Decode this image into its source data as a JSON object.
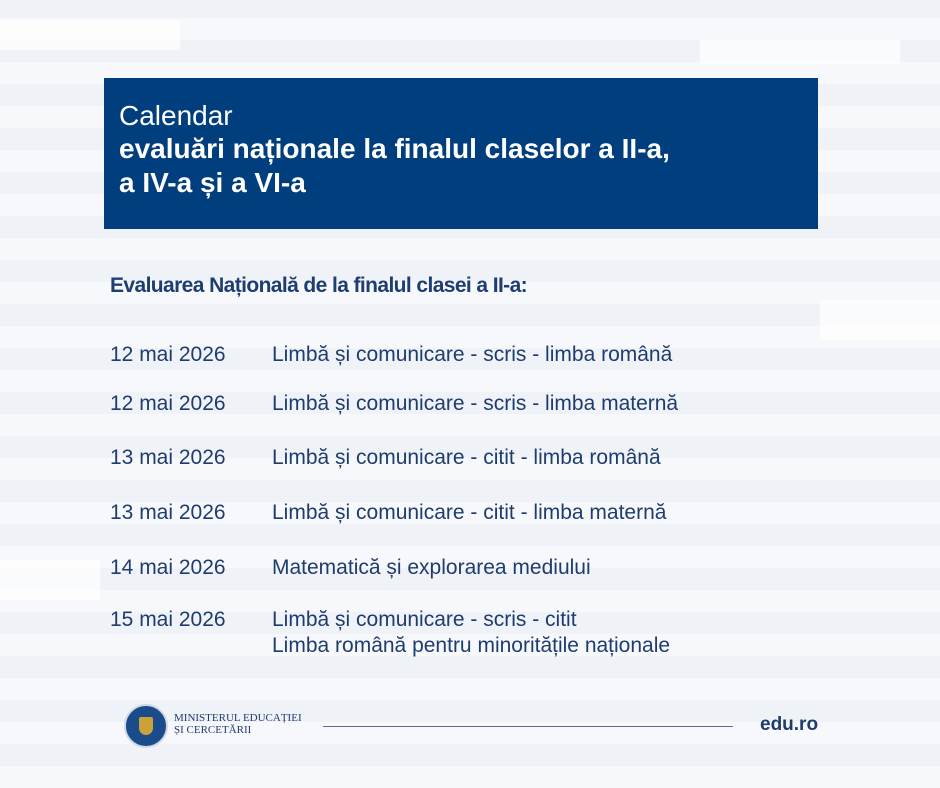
{
  "header": {
    "line1": "Calendar",
    "line2": "evaluări naționale la finalul claselor a II-a,",
    "line3": "a IV-a și a VI-a"
  },
  "section_title": "Evaluarea Națională de la finalul clasei a II-a:",
  "schedule": [
    {
      "date": "12 mai 2026",
      "subject": "Limbă și comunicare - scris - limba română"
    },
    {
      "date": "12 mai 2026",
      "subject": "Limbă și comunicare - scris - limba maternă"
    },
    {
      "date": "13 mai 2026",
      "subject": "Limbă și comunicare - citit - limba română"
    },
    {
      "date": "13 mai 2026",
      "subject": "Limbă și comunicare - citit - limba maternă"
    },
    {
      "date": "14 mai 2026",
      "subject": "Matematică și explorarea mediului"
    },
    {
      "date": "15 mai 2026",
      "subject": "Limbă și comunicare - scris - citit",
      "subject_line2": "Limba română pentru minoritățile naționale"
    }
  ],
  "footer": {
    "ministry_line1": "MINISTERUL EDUCAȚIEI",
    "ministry_line2": "ȘI CERCETĂRII",
    "website": "edu.ro"
  },
  "colors": {
    "header_bg": "#003e7e",
    "text": "#1f3c6e"
  }
}
